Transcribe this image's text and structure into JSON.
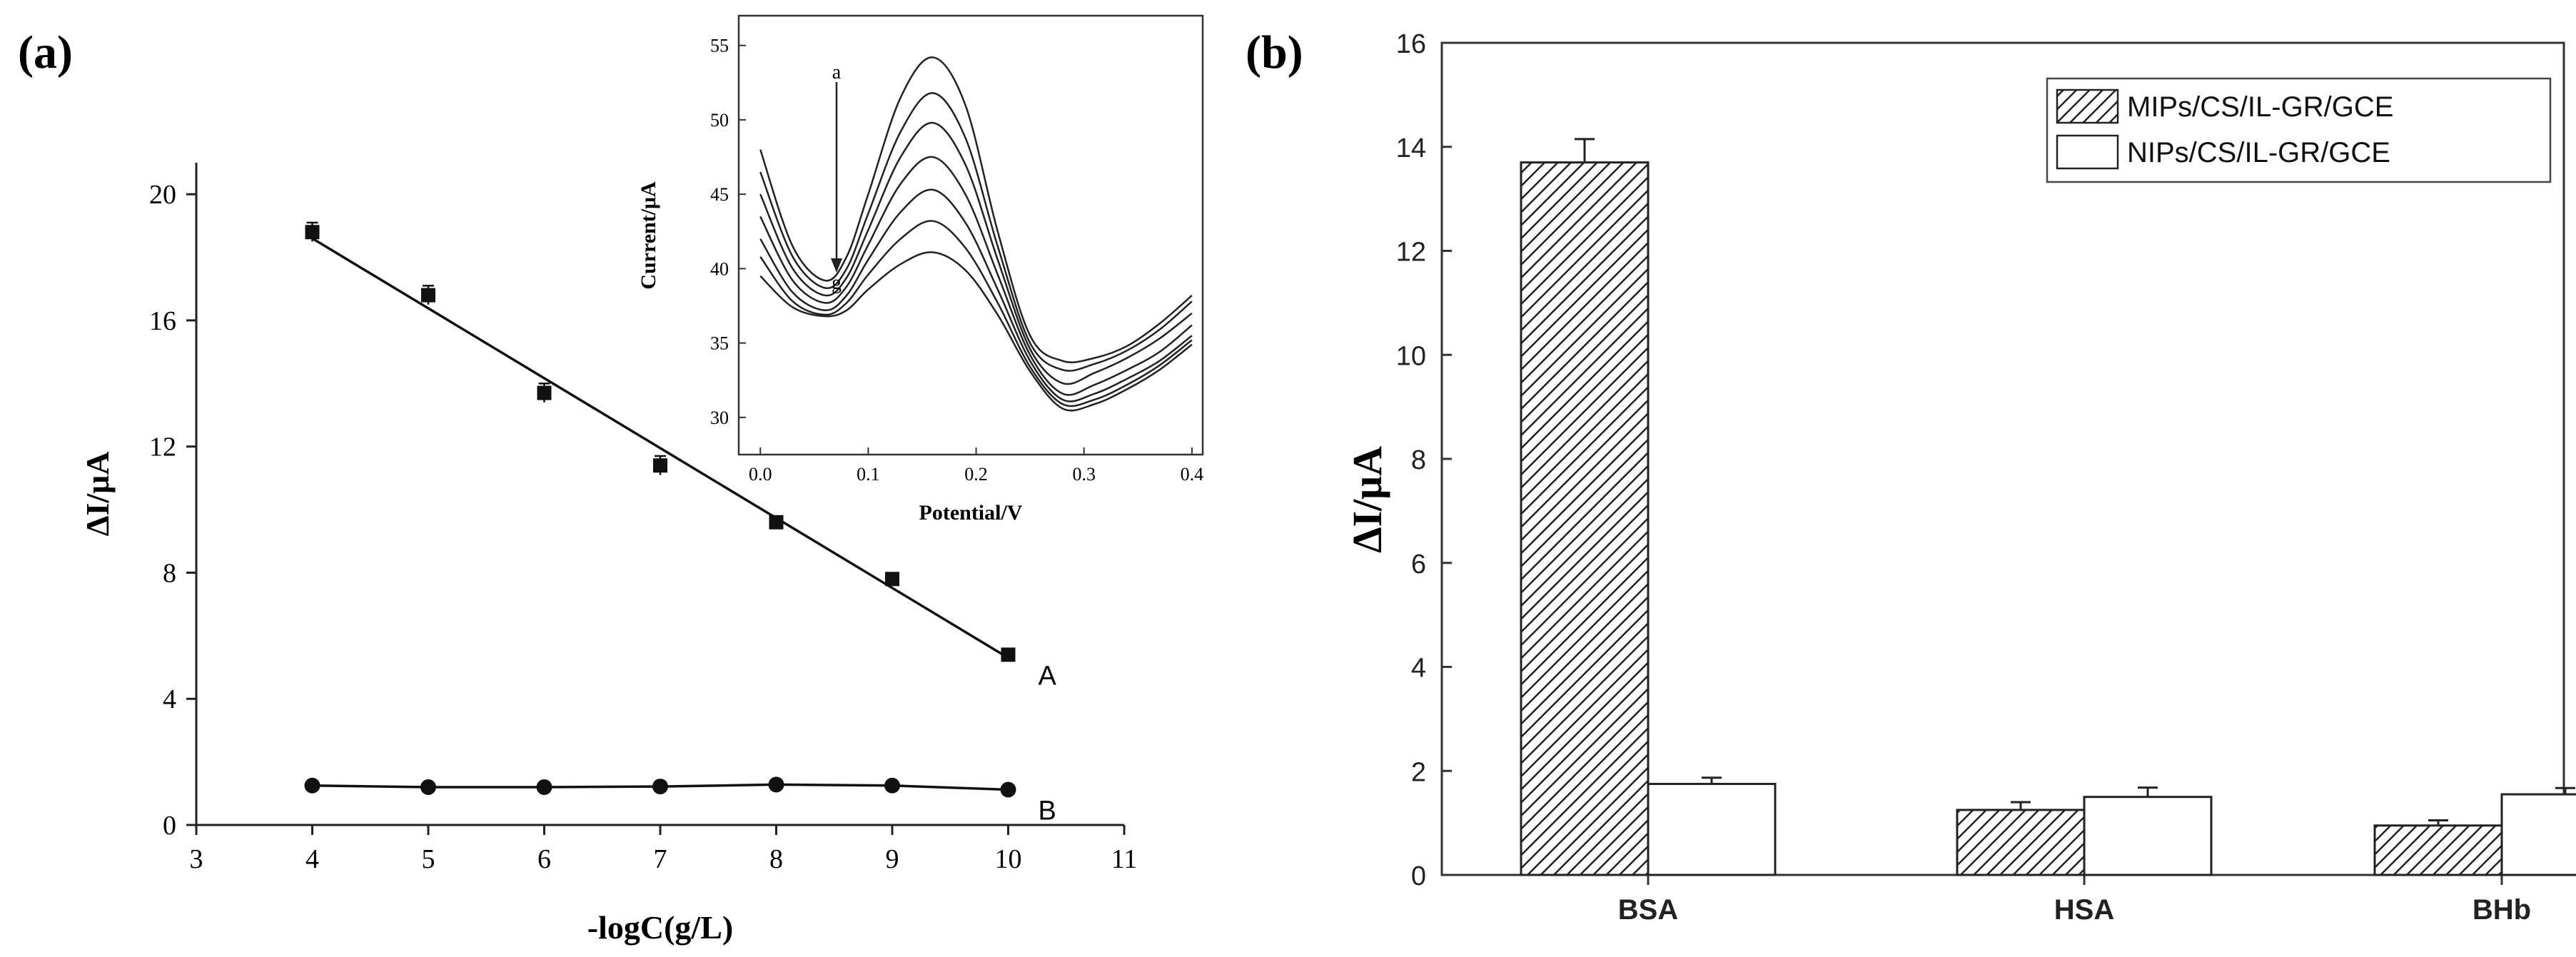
{
  "panel_labels": [
    "(a)",
    "(b)"
  ],
  "chart_data": [
    {
      "id": "a-main",
      "type": "scatter",
      "xlabel": "-logC(g/L)",
      "ylabel": "ΔI/μA",
      "xlim": [
        3,
        11
      ],
      "ylim": [
        0,
        21
      ],
      "xticks": [
        3,
        4,
        5,
        6,
        7,
        8,
        9,
        10,
        11
      ],
      "yticks": [
        0,
        4,
        8,
        12,
        16,
        20
      ],
      "series": [
        {
          "name": "A",
          "marker": "square",
          "x": [
            4,
            5,
            6,
            7,
            8,
            9,
            10
          ],
          "y": [
            18.8,
            16.8,
            13.7,
            11.4,
            9.6,
            7.8,
            5.4
          ],
          "err": [
            0.3,
            0.3,
            0.3,
            0.3,
            0.15,
            0.1,
            0.15
          ],
          "fit": [
            [
              4,
              18.6
            ],
            [
              10,
              5.3
            ]
          ]
        },
        {
          "name": "B",
          "marker": "circle",
          "x": [
            4,
            5,
            6,
            7,
            8,
            9,
            10
          ],
          "y": [
            1.25,
            1.2,
            1.2,
            1.22,
            1.28,
            1.25,
            1.12
          ],
          "err": [
            0.05,
            0.05,
            0.05,
            0.05,
            0.05,
            0.05,
            0.05
          ]
        }
      ]
    },
    {
      "id": "a-inset",
      "type": "line",
      "xlabel": "Potential/V",
      "ylabel": "Current/μA",
      "xlim": [
        -0.02,
        0.41
      ],
      "ylim": [
        27.5,
        57
      ],
      "xticks": [
        0.0,
        0.1,
        0.2,
        0.3,
        0.4
      ],
      "xtick_labels": [
        "0.0",
        "0.1",
        "0.2",
        "0.3",
        "0.4"
      ],
      "yticks": [
        30,
        35,
        40,
        45,
        50,
        55
      ],
      "arrow_labels": [
        "a",
        "g"
      ],
      "x": [
        0.0,
        0.03,
        0.06,
        0.08,
        0.1,
        0.13,
        0.16,
        0.19,
        0.22,
        0.25,
        0.28,
        0.31,
        0.34,
        0.37,
        0.4
      ],
      "series": [
        {
          "values": [
            48.0,
            41.5,
            39.2,
            40.8,
            45.0,
            51.5,
            54.2,
            51.0,
            42.5,
            35.5,
            33.8,
            34.0,
            34.8,
            36.3,
            38.2
          ]
        },
        {
          "values": [
            46.5,
            40.8,
            38.7,
            40.0,
            43.7,
            49.2,
            51.8,
            48.8,
            41.5,
            35.0,
            33.2,
            33.6,
            34.5,
            35.9,
            37.8
          ]
        },
        {
          "values": [
            45.0,
            40.0,
            38.2,
            39.4,
            42.6,
            47.5,
            49.8,
            47.0,
            40.6,
            34.6,
            32.3,
            33.0,
            34.0,
            35.3,
            37.0
          ]
        },
        {
          "values": [
            43.5,
            39.2,
            37.7,
            38.8,
            41.6,
            45.7,
            47.5,
            45.0,
            39.6,
            34.2,
            31.6,
            32.2,
            33.2,
            34.4,
            36.2
          ]
        },
        {
          "values": [
            42.0,
            38.4,
            37.2,
            38.2,
            40.6,
            43.8,
            45.3,
            43.1,
            38.6,
            33.8,
            31.2,
            31.6,
            32.6,
            33.8,
            35.5
          ]
        },
        {
          "values": [
            40.8,
            37.8,
            36.9,
            37.7,
            39.6,
            42.0,
            43.2,
            41.4,
            37.7,
            33.4,
            30.9,
            31.2,
            32.2,
            33.5,
            35.2
          ]
        },
        {
          "values": [
            39.5,
            37.4,
            36.8,
            37.2,
            38.6,
            40.3,
            41.1,
            39.9,
            36.9,
            33.1,
            30.6,
            30.9,
            31.9,
            33.2,
            34.9
          ]
        }
      ]
    },
    {
      "id": "b",
      "type": "bar",
      "ylabel": "ΔI/μA",
      "categories": [
        "BSA",
        "HSA",
        "BHb"
      ],
      "ylim": [
        0,
        16
      ],
      "yticks": [
        0,
        2,
        4,
        6,
        8,
        10,
        12,
        14,
        16
      ],
      "legend": "top-right",
      "series": [
        {
          "name": "MIPs/CS/IL-GR/GCE",
          "values": [
            13.7,
            1.25,
            0.95
          ],
          "err": [
            0.45,
            0.15,
            0.1
          ],
          "fill": "hatch"
        },
        {
          "name": "NIPs/CS/IL-GR/GCE",
          "values": [
            1.75,
            1.5,
            1.55
          ],
          "err": [
            0.12,
            0.18,
            0.12
          ],
          "fill": "white"
        }
      ]
    }
  ]
}
